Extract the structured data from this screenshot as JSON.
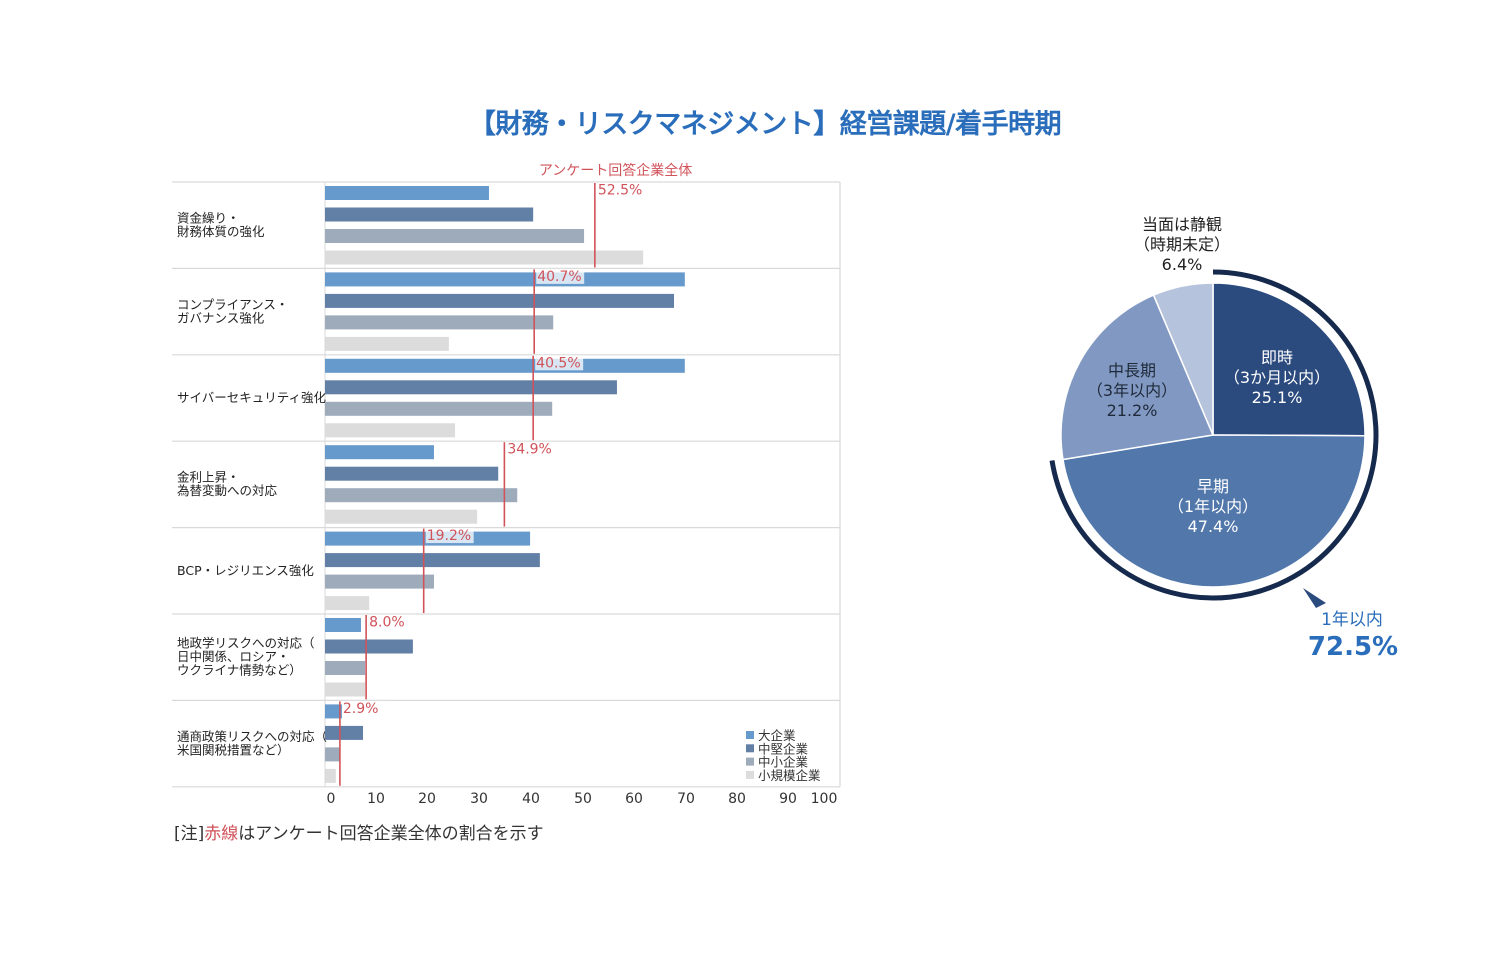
{
  "title": "【財務・リスクマネジメント】経営課題/着手時期",
  "note": {
    "prefix": "[注]",
    "highlight": "赤線",
    "suffix": "はアンケート回答企業全体の割合を示す"
  },
  "colors": {
    "title": "#2a6ebb",
    "reference_line": "#d0535a"
  },
  "chart_data": [
    {
      "type": "bar",
      "orientation": "horizontal",
      "title": "",
      "xlabel": "",
      "ylabel": "",
      "xlim": [
        0,
        100
      ],
      "x_ticks": [
        "0",
        "10",
        "20",
        "30",
        "40",
        "50",
        "60",
        "70",
        "80",
        "90",
        "100"
      ],
      "categories": [
        [
          "資金繰り・",
          "財務体質の強化"
        ],
        [
          "コンプライアンス・",
          "ガバナンス強化"
        ],
        [
          "サイバーセキュリティ強化"
        ],
        [
          "金利上昇・",
          "為替変動への対応"
        ],
        [
          "BCP・レジリエンス強化"
        ],
        [
          "地政学リスクへの対応（",
          "日中関係、ロシア・",
          "ウクライナ情勢など）"
        ],
        [
          "通商政策リスクへの対応（",
          "米国関税措置など）"
        ]
      ],
      "series": [
        {
          "name": "大企業",
          "color": "#6699cc",
          "values": [
            31.9,
            70.0,
            70.0,
            21.2,
            39.9,
            7.0,
            3.3
          ]
        },
        {
          "name": "中堅企業",
          "color": "#627fa6",
          "values": [
            40.5,
            67.9,
            56.8,
            33.7,
            41.8,
            17.1,
            7.4
          ]
        },
        {
          "name": "中小企業",
          "color": "#9eabbb",
          "values": [
            50.4,
            44.4,
            44.2,
            37.4,
            21.2,
            7.8,
            2.9
          ]
        },
        {
          "name": "小規模企業",
          "color": "#dcdcdc",
          "values": [
            61.9,
            24.1,
            25.3,
            29.6,
            8.6,
            7.8,
            2.1
          ]
        }
      ],
      "reference": {
        "name": "アンケート回答企業全体",
        "values": [
          52.5,
          40.7,
          40.5,
          34.9,
          19.2,
          8.0,
          2.9
        ],
        "labels": [
          "52.5%",
          "40.7%",
          "40.5%",
          "34.9%",
          "19.2%",
          "8.0%",
          "2.9%"
        ]
      },
      "legend": "bottom-right",
      "grid": false
    },
    {
      "type": "pie",
      "title": "",
      "slices": [
        {
          "name": "即時",
          "sub": "（3か月以内）",
          "value": 25.1,
          "label": "25.1%",
          "color": "#2b4a7e",
          "text_color": "#ffffff"
        },
        {
          "name": "早期",
          "sub": "（1年以内）",
          "value": 47.4,
          "label": "47.4%",
          "color": "#5277ab",
          "text_color": "#ffffff"
        },
        {
          "name": "中長期",
          "sub": "（3年以内）",
          "value": 21.2,
          "label": "21.2%",
          "color": "#8199c2",
          "text_color": "#1f2a3a"
        },
        {
          "name": "当面は静観",
          "sub": "（時期未定）",
          "value": 6.4,
          "label": "6.4%",
          "color": "#b6c3dc",
          "text_color": "#222222"
        }
      ],
      "annotation": {
        "label": "1年以内",
        "value": "72.5%",
        "arc_value": 72.5,
        "arc_color": "#162a4d",
        "text_color": "#2a6ebb"
      }
    }
  ]
}
